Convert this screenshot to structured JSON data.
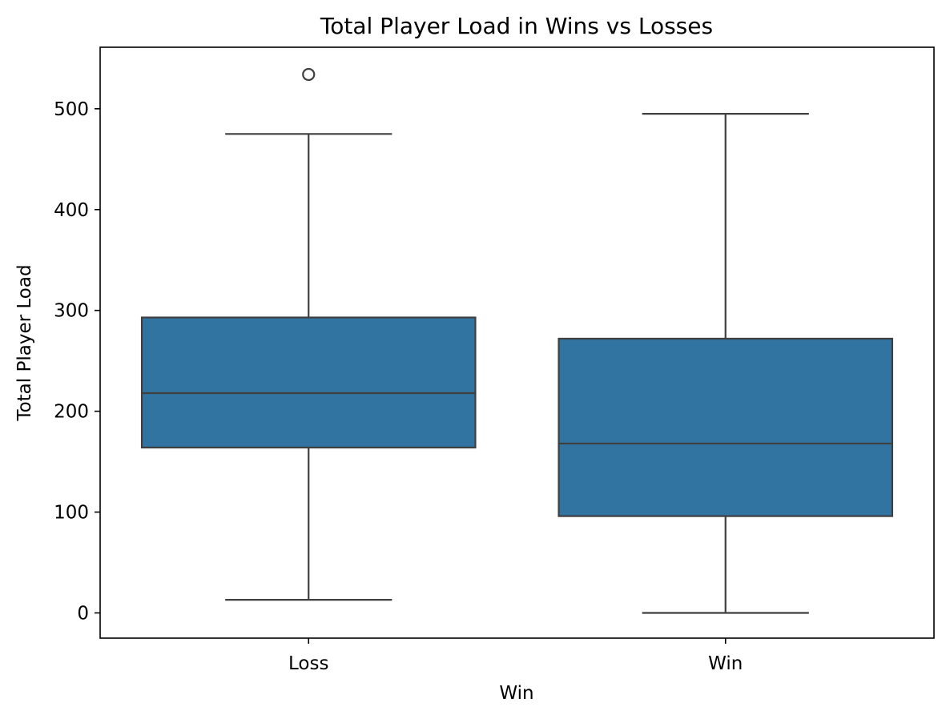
{
  "chart_data": {
    "type": "box",
    "title": "Total Player Load in Wins vs Losses",
    "xlabel": "Win",
    "ylabel": "Total Player Load",
    "categories": [
      "Loss",
      "Win"
    ],
    "ylim": [
      -25,
      561
    ],
    "yticks": [
      0,
      100,
      200,
      300,
      400,
      500
    ],
    "grid": false,
    "box_color": "#3274a1",
    "line_color": "#3f3f3f",
    "boxes": [
      {
        "category": "Loss",
        "whisker_low": 13,
        "q1": 164,
        "median": 218,
        "q3": 293,
        "whisker_high": 475,
        "outliers": [
          534
        ]
      },
      {
        "category": "Win",
        "whisker_low": 0,
        "q1": 96,
        "median": 168,
        "q3": 272,
        "whisker_high": 495,
        "outliers": []
      }
    ]
  }
}
